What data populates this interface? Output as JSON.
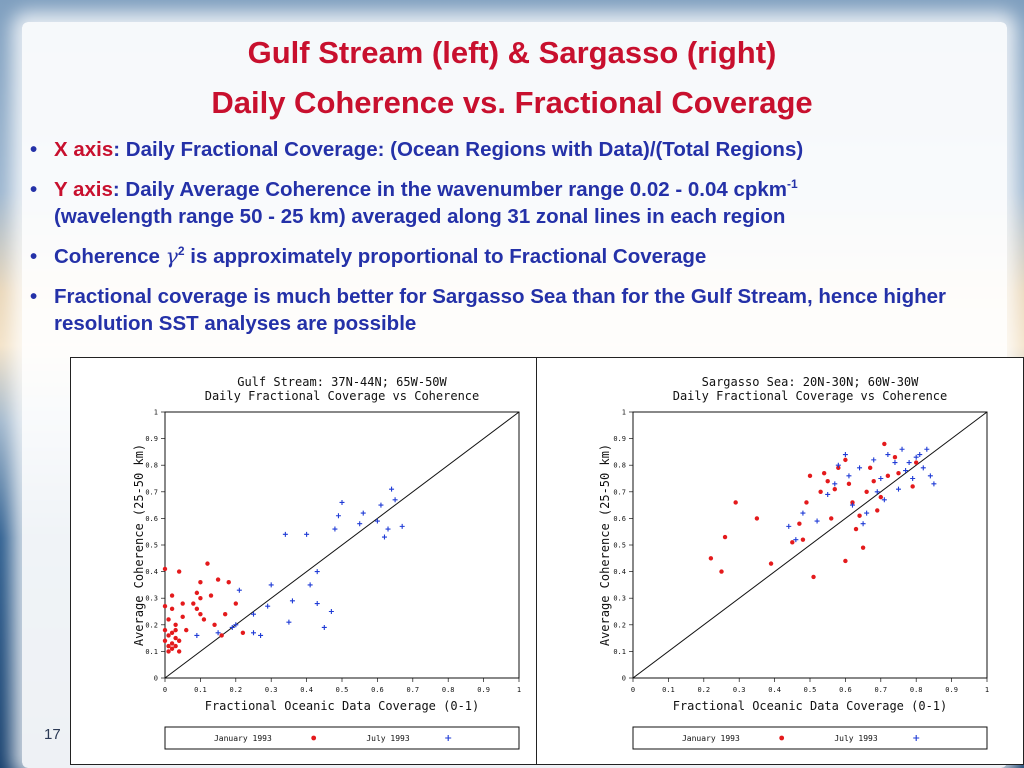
{
  "slide": {
    "title_line1": "Gulf Stream (left) & Sargasso (right)",
    "title_line2": "Daily Coherence vs. Fractional Coverage",
    "bullets": {
      "b1_key": "X axis",
      "b1_text": ": Daily Fractional Coverage: (Ocean Regions with Data)/(Total Regions)",
      "b2_key": "Y axis",
      "b2_text": ": Daily Average Coherence in the wavenumber range 0.02 - 0.04 cpkm",
      "b2_sup": "-1",
      "b2_line2": "(wavelength range 50 - 25 km) averaged along 31 zonal lines in each region",
      "b3_pre": "Coherence ",
      "b3_symbol": "γ",
      "b3_sup": "2",
      "b3_post": " is approximately proportional to Fractional Coverage",
      "b4_text": "Fractional coverage is much better for Sargasso Sea than for the Gulf Stream, hence higher resolution SST analyses are possible"
    },
    "bullet_glyph": "•",
    "page_number": "17",
    "colors": {
      "title": "#c8102e",
      "body": "#2431a8",
      "jan_series": "#e41a1c",
      "jul_series": "#1f3bd6"
    }
  },
  "chart_data": [
    {
      "type": "scatter",
      "title": "Gulf Stream: 37N-44N; 65W-50W",
      "subtitle": "Daily Fractional Coverage vs Coherence",
      "xlabel": "Fractional Oceanic Data Coverage (0-1)",
      "ylabel": "Average Coherence (25-50 km)",
      "xlim": [
        0,
        1
      ],
      "ylim": [
        0,
        1
      ],
      "xticks": [
        "0",
        "0.1",
        "0.2",
        "0.3",
        "0.4",
        "0.5",
        "0.6",
        "0.7",
        "0.8",
        "0.9",
        "1"
      ],
      "yticks": [
        "0",
        "0.1",
        "0.2",
        "0.3",
        "0.4",
        "0.5",
        "0.6",
        "0.7",
        "0.8",
        "0.9",
        "1"
      ],
      "reference_line": "y = x",
      "legend": [
        "January 1993",
        "July 1993"
      ],
      "series": [
        {
          "name": "January 1993",
          "marker": "dot",
          "color": "#e41a1c",
          "points": [
            [
              0.0,
              0.41
            ],
            [
              0.0,
              0.27
            ],
            [
              0.0,
              0.18
            ],
            [
              0.0,
              0.14
            ],
            [
              0.01,
              0.12
            ],
            [
              0.01,
              0.1
            ],
            [
              0.01,
              0.16
            ],
            [
              0.02,
              0.13
            ],
            [
              0.02,
              0.17
            ],
            [
              0.02,
              0.11
            ],
            [
              0.01,
              0.22
            ],
            [
              0.02,
              0.26
            ],
            [
              0.02,
              0.31
            ],
            [
              0.03,
              0.18
            ],
            [
              0.03,
              0.15
            ],
            [
              0.03,
              0.12
            ],
            [
              0.04,
              0.1
            ],
            [
              0.04,
              0.14
            ],
            [
              0.03,
              0.2
            ],
            [
              0.04,
              0.4
            ],
            [
              0.05,
              0.23
            ],
            [
              0.06,
              0.18
            ],
            [
              0.08,
              0.28
            ],
            [
              0.09,
              0.26
            ],
            [
              0.09,
              0.32
            ],
            [
              0.1,
              0.24
            ],
            [
              0.1,
              0.36
            ],
            [
              0.1,
              0.3
            ],
            [
              0.11,
              0.22
            ],
            [
              0.12,
              0.43
            ],
            [
              0.13,
              0.31
            ],
            [
              0.14,
              0.2
            ],
            [
              0.15,
              0.37
            ],
            [
              0.16,
              0.16
            ],
            [
              0.17,
              0.24
            ],
            [
              0.18,
              0.36
            ],
            [
              0.2,
              0.28
            ],
            [
              0.22,
              0.17
            ],
            [
              0.05,
              0.28
            ]
          ]
        },
        {
          "name": "July 1993",
          "marker": "plus",
          "color": "#1f3bd6",
          "points": [
            [
              0.09,
              0.16
            ],
            [
              0.15,
              0.17
            ],
            [
              0.19,
              0.19
            ],
            [
              0.2,
              0.2
            ],
            [
              0.21,
              0.33
            ],
            [
              0.25,
              0.17
            ],
            [
              0.25,
              0.24
            ],
            [
              0.27,
              0.16
            ],
            [
              0.29,
              0.27
            ],
            [
              0.3,
              0.35
            ],
            [
              0.34,
              0.54
            ],
            [
              0.35,
              0.21
            ],
            [
              0.36,
              0.29
            ],
            [
              0.4,
              0.54
            ],
            [
              0.41,
              0.35
            ],
            [
              0.43,
              0.4
            ],
            [
              0.43,
              0.28
            ],
            [
              0.45,
              0.19
            ],
            [
              0.47,
              0.25
            ],
            [
              0.48,
              0.56
            ],
            [
              0.49,
              0.61
            ],
            [
              0.5,
              0.66
            ],
            [
              0.55,
              0.58
            ],
            [
              0.56,
              0.62
            ],
            [
              0.6,
              0.59
            ],
            [
              0.61,
              0.65
            ],
            [
              0.62,
              0.53
            ],
            [
              0.63,
              0.56
            ],
            [
              0.64,
              0.71
            ],
            [
              0.65,
              0.67
            ],
            [
              0.67,
              0.57
            ]
          ]
        }
      ]
    },
    {
      "type": "scatter",
      "title": "Sargasso Sea: 20N-30N; 60W-30W",
      "subtitle": "Daily Fractional Coverage vs Coherence",
      "xlabel": "Fractional Oceanic Data Coverage (0-1)",
      "ylabel": "Average Coherence (25-50 km)",
      "xlim": [
        0,
        1
      ],
      "ylim": [
        0,
        1
      ],
      "xticks": [
        "0",
        "0.1",
        "0.2",
        "0.3",
        "0.4",
        "0.5",
        "0.6",
        "0.7",
        "0.8",
        "0.9",
        "1"
      ],
      "yticks": [
        "0",
        "0.1",
        "0.2",
        "0.3",
        "0.4",
        "0.5",
        "0.6",
        "0.7",
        "0.8",
        "0.9",
        "1"
      ],
      "reference_line": "y = x",
      "legend": [
        "January 1993",
        "July 1993"
      ],
      "series": [
        {
          "name": "January 1993",
          "marker": "dot",
          "color": "#e41a1c",
          "points": [
            [
              0.22,
              0.45
            ],
            [
              0.25,
              0.4
            ],
            [
              0.26,
              0.53
            ],
            [
              0.29,
              0.66
            ],
            [
              0.35,
              0.6
            ],
            [
              0.39,
              0.43
            ],
            [
              0.45,
              0.51
            ],
            [
              0.47,
              0.58
            ],
            [
              0.48,
              0.52
            ],
            [
              0.49,
              0.66
            ],
            [
              0.5,
              0.76
            ],
            [
              0.51,
              0.38
            ],
            [
              0.53,
              0.7
            ],
            [
              0.54,
              0.77
            ],
            [
              0.55,
              0.74
            ],
            [
              0.56,
              0.6
            ],
            [
              0.57,
              0.71
            ],
            [
              0.58,
              0.79
            ],
            [
              0.6,
              0.82
            ],
            [
              0.61,
              0.73
            ],
            [
              0.62,
              0.66
            ],
            [
              0.63,
              0.56
            ],
            [
              0.64,
              0.61
            ],
            [
              0.65,
              0.49
            ],
            [
              0.66,
              0.7
            ],
            [
              0.67,
              0.79
            ],
            [
              0.68,
              0.74
            ],
            [
              0.7,
              0.68
            ],
            [
              0.71,
              0.88
            ],
            [
              0.72,
              0.76
            ],
            [
              0.74,
              0.83
            ],
            [
              0.75,
              0.77
            ],
            [
              0.6,
              0.44
            ],
            [
              0.69,
              0.63
            ],
            [
              0.8,
              0.81
            ],
            [
              0.79,
              0.72
            ]
          ]
        },
        {
          "name": "July 1993",
          "marker": "plus",
          "color": "#1f3bd6",
          "points": [
            [
              0.44,
              0.57
            ],
            [
              0.46,
              0.52
            ],
            [
              0.48,
              0.62
            ],
            [
              0.52,
              0.59
            ],
            [
              0.55,
              0.69
            ],
            [
              0.57,
              0.73
            ],
            [
              0.58,
              0.8
            ],
            [
              0.6,
              0.84
            ],
            [
              0.61,
              0.76
            ],
            [
              0.62,
              0.65
            ],
            [
              0.64,
              0.79
            ],
            [
              0.65,
              0.58
            ],
            [
              0.66,
              0.62
            ],
            [
              0.68,
              0.82
            ],
            [
              0.69,
              0.7
            ],
            [
              0.7,
              0.75
            ],
            [
              0.71,
              0.67
            ],
            [
              0.72,
              0.84
            ],
            [
              0.74,
              0.81
            ],
            [
              0.75,
              0.71
            ],
            [
              0.76,
              0.86
            ],
            [
              0.77,
              0.78
            ],
            [
              0.78,
              0.81
            ],
            [
              0.79,
              0.75
            ],
            [
              0.8,
              0.83
            ],
            [
              0.81,
              0.84
            ],
            [
              0.82,
              0.79
            ],
            [
              0.83,
              0.86
            ],
            [
              0.84,
              0.76
            ],
            [
              0.85,
              0.73
            ]
          ]
        }
      ]
    }
  ]
}
